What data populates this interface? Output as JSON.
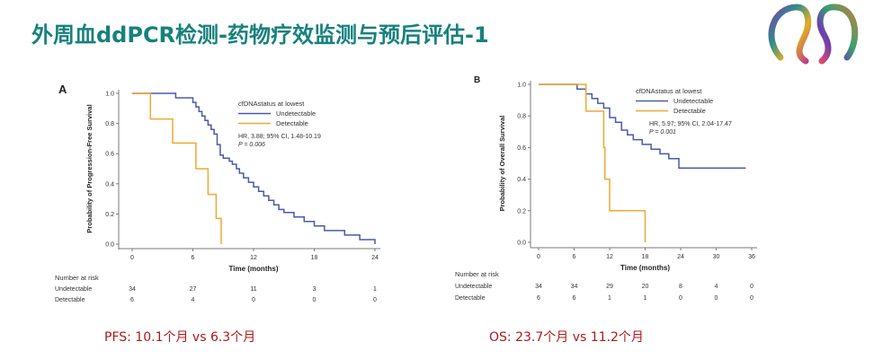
{
  "slide": {
    "title": "外周血ddPCR检测-药物疗效监测与预后评估-1",
    "caption_a": "PFS: 10.1个月 vs 6.3个月",
    "caption_b": "OS: 23.7个月 vs 11.2个月"
  },
  "colors": {
    "title": "#17817d",
    "caption": "#b01818",
    "undetectable": "#4a5aa8",
    "detectable": "#f0a830",
    "axis": "#7a7a7a"
  },
  "chart_data": [
    {
      "type": "line",
      "panel_label": "A",
      "ylabel": "Probability of Progression-Free Survival",
      "xlabel": "Time (months)",
      "xlim": [
        0,
        24
      ],
      "ylim": [
        0,
        1
      ],
      "xticks": [
        "0",
        "6",
        "12",
        "18",
        "24"
      ],
      "yticks": [
        "0.0",
        "0.2",
        "0.4",
        "0.6",
        "0.8",
        "1.0"
      ],
      "legend_title": "cfDNAstatus at lowest",
      "legend_position": "top-right",
      "stats": [
        "HR, 3.88; 95% CI, 1.48-10.19",
        "P = 0.006"
      ],
      "series": [
        {
          "name": "Undetectable",
          "color": "#4a5aa8",
          "x": [
            0,
            4,
            4.3,
            5.7,
            6,
            6.3,
            6.6,
            6.9,
            7.2,
            7.5,
            7.8,
            8.1,
            8.4,
            8.7,
            9,
            9.6,
            9.9,
            10.3,
            10.6,
            11,
            11.5,
            12,
            12.5,
            13,
            13.5,
            14,
            14.5,
            15,
            16,
            17,
            18,
            19,
            21,
            22.5,
            24,
            24
          ],
          "y": [
            1,
            1,
            0.97,
            0.97,
            0.94,
            0.91,
            0.88,
            0.85,
            0.82,
            0.79,
            0.76,
            0.73,
            0.66,
            0.59,
            0.57,
            0.55,
            0.53,
            0.5,
            0.47,
            0.44,
            0.41,
            0.38,
            0.35,
            0.32,
            0.29,
            0.26,
            0.23,
            0.21,
            0.18,
            0.15,
            0.12,
            0.09,
            0.06,
            0.03,
            0.03,
            0
          ]
        },
        {
          "name": "Detectable",
          "color": "#f0a830",
          "x": [
            0,
            1.5,
            1.8,
            4,
            6.3,
            7.5,
            8.3,
            8.8
          ],
          "y": [
            1,
            1,
            0.83,
            0.67,
            0.5,
            0.33,
            0.17,
            0
          ]
        }
      ],
      "risk_table": {
        "title": "Number at risk",
        "rows": [
          {
            "label": "Undetectable",
            "values": [
              "34",
              "27",
              "11",
              "3",
              "1"
            ]
          },
          {
            "label": "Detectable",
            "values": [
              "6",
              "4",
              "0",
              "0",
              "0"
            ]
          }
        ]
      }
    },
    {
      "type": "line",
      "panel_label": "B",
      "ylabel": "Probability of Overall Survival",
      "xlabel": "Time (months)",
      "xlim": [
        0,
        36
      ],
      "ylim": [
        0,
        1
      ],
      "xticks": [
        "0",
        "6",
        "12",
        "18",
        "24",
        "30",
        "36"
      ],
      "yticks": [
        "0.0",
        "0.2",
        "0.4",
        "0.6",
        "0.8",
        "1.0"
      ],
      "legend_title": "cfDNAstatus at lowest",
      "legend_position": "top-right",
      "stats": [
        "HR, 5.97; 95% CI, 2.04-17.47",
        "P = 0.001"
      ],
      "series": [
        {
          "name": "Undetectable",
          "color": "#4a5aa8",
          "x": [
            0,
            6,
            6.5,
            8,
            9,
            10,
            11,
            12,
            13,
            14,
            15,
            16,
            17.5,
            19,
            20.5,
            22,
            23.7,
            35
          ],
          "y": [
            1,
            1,
            0.97,
            0.94,
            0.91,
            0.88,
            0.85,
            0.79,
            0.76,
            0.71,
            0.68,
            0.65,
            0.62,
            0.59,
            0.56,
            0.53,
            0.47,
            0.47
          ]
        },
        {
          "name": "Detectable",
          "color": "#f0a830",
          "x": [
            0,
            7.5,
            8,
            11,
            11.2,
            12,
            18
          ],
          "y": [
            1,
            1,
            0.83,
            0.6,
            0.4,
            0.2,
            0
          ]
        }
      ],
      "risk_table": {
        "title": "Number at risk",
        "rows": [
          {
            "label": "Undetectable",
            "values": [
              "34",
              "34",
              "29",
              "20",
              "8",
              "4",
              "0"
            ]
          },
          {
            "label": "Detectable",
            "values": [
              "6",
              "6",
              "1",
              "1",
              "0",
              "0",
              "0"
            ]
          }
        ]
      }
    }
  ]
}
